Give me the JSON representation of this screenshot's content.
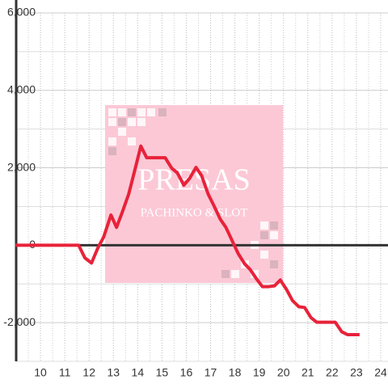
{
  "chart_data": {
    "type": "line",
    "watermark": {
      "title": "PRESAS",
      "subtitle": "PACHINKO & SLOT"
    },
    "x": [
      8.97,
      11.57,
      11.83,
      12.1,
      12.37,
      12.6,
      12.9,
      13.13,
      13.37,
      13.63,
      13.87,
      14.13,
      14.37,
      15.13,
      15.4,
      15.63,
      15.9,
      16.13,
      16.4,
      16.63,
      16.9,
      17.13,
      17.4,
      17.63,
      17.9,
      18.13,
      18.4,
      18.63,
      18.9,
      19.13,
      19.4,
      19.63,
      19.87,
      20.13,
      20.37,
      20.63,
      20.87,
      21.13,
      21.37,
      22.13,
      22.4,
      22.63,
      23.13
    ],
    "series": [
      {
        "color": "#e8223a",
        "values": [
          0,
          0,
          -330,
          -460,
          -60,
          210,
          780,
          460,
          860,
          1320,
          1910,
          2560,
          2260,
          2260,
          1990,
          1870,
          1550,
          1720,
          2010,
          1800,
          1320,
          1030,
          670,
          460,
          100,
          -210,
          -480,
          -630,
          -880,
          -1070,
          -1070,
          -1050,
          -900,
          -1150,
          -1430,
          -1590,
          -1610,
          -1870,
          -1990,
          -1990,
          -2240,
          -2310,
          -2310
        ]
      }
    ],
    "xlim": [
      9,
      24.3
    ],
    "xticks": [
      10,
      11,
      12,
      13,
      14,
      15,
      16,
      17,
      18,
      19,
      20,
      21,
      22,
      23,
      24
    ],
    "ylim": [
      -3000,
      6000
    ],
    "yticks": [
      {
        "value": -2000,
        "label": "-2,000"
      },
      0,
      {
        "value": 2000,
        "label": "2,000"
      },
      {
        "value": 4000,
        "label": "4,000"
      },
      {
        "value": 6000,
        "label": "6,000"
      }
    ],
    "yminor": [
      -3000,
      -1000,
      1000,
      3000,
      5000
    ],
    "xminor": [
      9.5,
      10.5,
      11.5,
      12.5,
      13.5,
      14.5,
      15.5,
      16.5,
      17.5,
      18.5,
      19.5,
      20.5,
      21.5,
      22.5,
      23.5
    ],
    "grid": true
  }
}
